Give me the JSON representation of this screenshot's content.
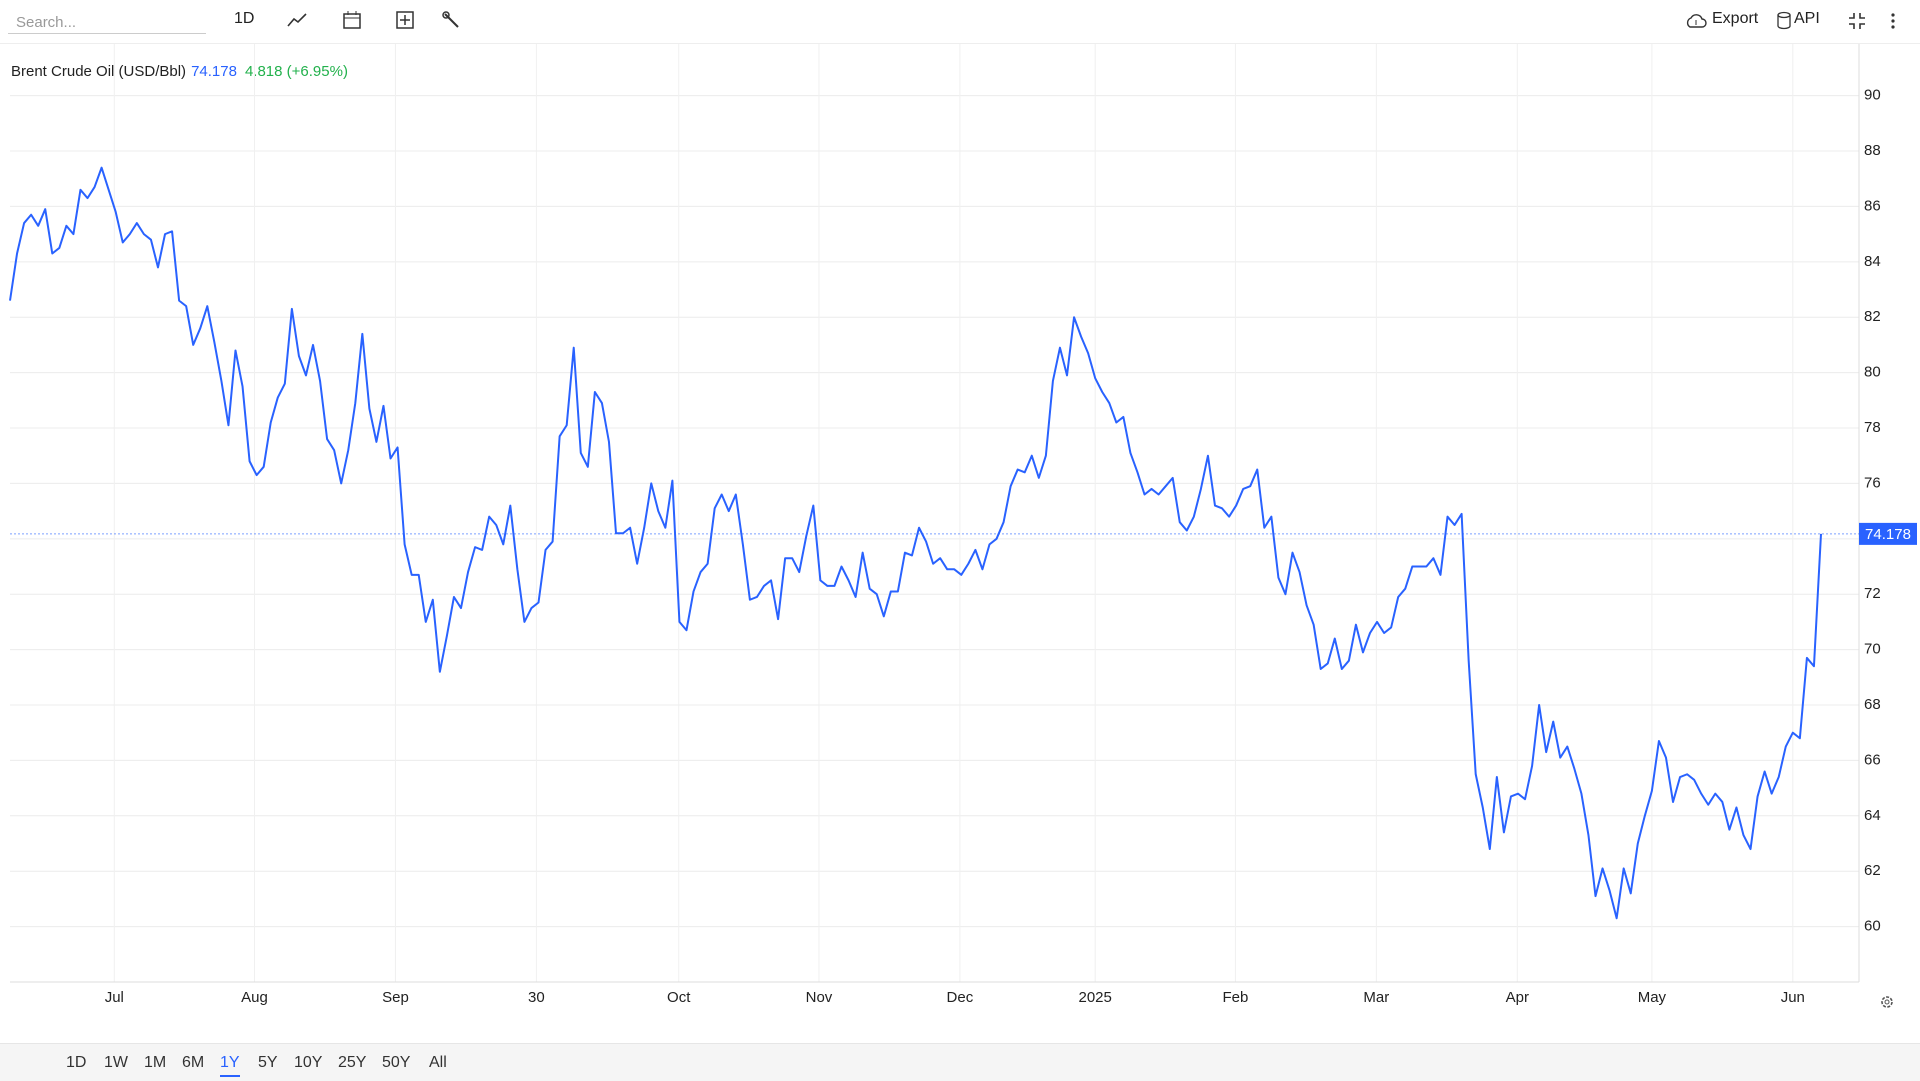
{
  "toolbar": {
    "search_placeholder": "Search...",
    "interval": "1D",
    "export": "Export",
    "api": "API"
  },
  "ranges": {
    "items": [
      "1D",
      "1W",
      "1M",
      "6M",
      "1Y",
      "5Y",
      "10Y",
      "25Y",
      "50Y",
      "All"
    ],
    "active": 4
  },
  "chart_data": {
    "type": "line",
    "title": "Brent Crude Oil (USD/Bbl)",
    "change": "4.818 (+6.95%)",
    "color": "#2962ff",
    "change_color": "#22b14c",
    "grid": true,
    "xlim": [
      0,
      257
    ],
    "xticks": [
      {
        "value": 14.8,
        "label": "Jul"
      },
      {
        "value": 34.7,
        "label": "Aug"
      },
      {
        "value": 54.7,
        "label": "Sep"
      },
      {
        "value": 74.7,
        "label": "30"
      },
      {
        "value": 94.9,
        "label": "Oct"
      },
      {
        "value": 114.8,
        "label": "Nov"
      },
      {
        "value": 134.8,
        "label": "Dec"
      },
      {
        "value": 154.0,
        "label": "2025"
      },
      {
        "value": 173.9,
        "label": "Feb"
      },
      {
        "value": 193.9,
        "label": "Mar"
      },
      {
        "value": 213.9,
        "label": "Apr"
      },
      {
        "value": 233.0,
        "label": "May"
      },
      {
        "value": 253.0,
        "label": "Jun"
      }
    ],
    "ylim": [
      58,
      91.9
    ],
    "yticks": [
      60,
      62,
      64,
      66,
      68,
      70,
      72,
      74,
      76,
      78,
      80,
      82,
      84,
      86,
      88,
      90
    ],
    "values": [
      82.6,
      84.3,
      85.4,
      85.7,
      85.3,
      85.9,
      84.3,
      84.5,
      85.3,
      85.0,
      86.6,
      86.3,
      86.7,
      87.4,
      86.6,
      85.8,
      84.7,
      85.0,
      85.4,
      85.0,
      84.8,
      83.8,
      85.0,
      85.1,
      82.6,
      82.4,
      81.0,
      81.6,
      82.4,
      81.1,
      79.7,
      78.1,
      80.8,
      79.5,
      76.8,
      76.3,
      76.6,
      78.2,
      79.1,
      79.6,
      82.3,
      80.6,
      79.9,
      81.0,
      79.7,
      77.6,
      77.2,
      76.0,
      77.2,
      78.9,
      81.4,
      78.7,
      77.5,
      78.8,
      76.9,
      77.3,
      73.8,
      72.7,
      72.7,
      71.0,
      71.8,
      69.2,
      70.5,
      71.9,
      71.5,
      72.8,
      73.7,
      73.6,
      74.8,
      74.5,
      73.8,
      75.2,
      72.9,
      71.0,
      71.5,
      71.7,
      73.6,
      73.9,
      77.7,
      78.1,
      80.9,
      77.1,
      76.6,
      79.3,
      78.9,
      77.5,
      74.2,
      74.2,
      74.4,
      73.1,
      74.4,
      76.0,
      75.0,
      74.4,
      76.1,
      71.0,
      70.7,
      72.1,
      72.8,
      73.1,
      75.1,
      75.6,
      75.0,
      75.6,
      73.8,
      71.8,
      71.9,
      72.3,
      72.5,
      71.1,
      73.3,
      73.3,
      72.8,
      74.1,
      75.2,
      72.5,
      72.3,
      72.3,
      73.0,
      72.5,
      71.9,
      73.5,
      72.2,
      72.0,
      71.2,
      72.1,
      72.1,
      73.5,
      73.4,
      74.4,
      73.9,
      73.1,
      73.3,
      72.9,
      72.9,
      72.7,
      73.1,
      73.6,
      72.9,
      73.8,
      74.0,
      74.6,
      75.9,
      76.5,
      76.4,
      77.0,
      76.2,
      77.0,
      79.7,
      80.9,
      79.9,
      82.0,
      81.3,
      80.7,
      79.8,
      79.3,
      78.9,
      78.2,
      78.4,
      77.1,
      76.4,
      75.6,
      75.8,
      75.6,
      75.9,
      76.2,
      74.6,
      74.3,
      74.8,
      75.8,
      77.0,
      75.2,
      75.1,
      74.8,
      75.2,
      75.8,
      75.9,
      76.5,
      74.4,
      74.8,
      72.6,
      72.0,
      73.5,
      72.8,
      71.6,
      70.9,
      69.3,
      69.5,
      70.4,
      69.3,
      69.6,
      70.9,
      69.9,
      70.6,
      71.0,
      70.6,
      70.8,
      71.9,
      72.2,
      73.0,
      73.0,
      73.0,
      73.3,
      72.7,
      74.8,
      74.5,
      74.9,
      69.6,
      65.5,
      64.3,
      62.8,
      65.4,
      63.4,
      64.7,
      64.8,
      64.6,
      65.8,
      68.0,
      66.3,
      67.4,
      66.1,
      66.5,
      65.7,
      64.8,
      63.3,
      61.1,
      62.1,
      61.3,
      60.3,
      62.1,
      61.2,
      63.0,
      64.0,
      64.9,
      66.7,
      66.1,
      64.5,
      65.4,
      65.5,
      65.3,
      64.8,
      64.4,
      64.8,
      64.5,
      63.5,
      64.3,
      63.3,
      62.8,
      64.7,
      65.6,
      64.8,
      65.4,
      66.5,
      67.0,
      66.8,
      69.7,
      69.4,
      74.178
    ]
  }
}
